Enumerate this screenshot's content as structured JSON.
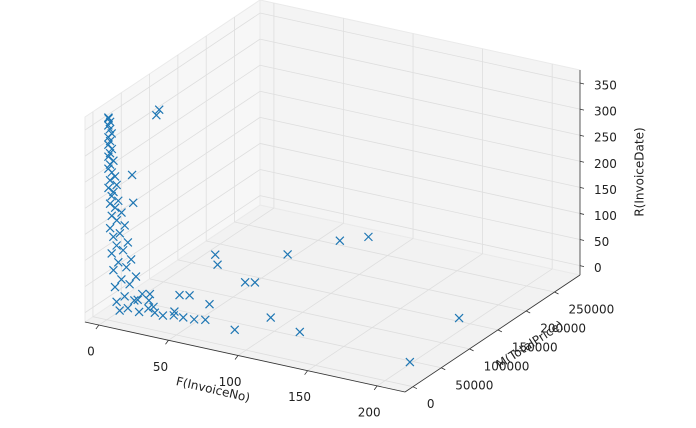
{
  "chart_data": {
    "type": "scatter3d",
    "xlabel": "F(InvoiceNo)",
    "ylabel": "M(TotalPrice)",
    "zlabel": "R(InvoiceDate)",
    "xlim": [
      -10,
      220
    ],
    "ylim": [
      -14000,
      295000
    ],
    "zlim": [
      -18,
      375
    ],
    "xticks": [
      0,
      50,
      100,
      150,
      200
    ],
    "yticks": [
      0,
      50000,
      100000,
      150000,
      200000,
      250000
    ],
    "zticks": [
      0,
      50,
      100,
      150,
      200,
      250,
      300,
      350
    ],
    "grid": true,
    "color": "#1f77b4",
    "marker": "x",
    "x": [
      1,
      1,
      2,
      1,
      2,
      3,
      1,
      2,
      1,
      3,
      2,
      1,
      4,
      2,
      1,
      3,
      5,
      2,
      6,
      1,
      4,
      3,
      7,
      2,
      5,
      9,
      3,
      6,
      11,
      2,
      8,
      4,
      13,
      6,
      10,
      3,
      15,
      7,
      12,
      4,
      18,
      9,
      14,
      5,
      22,
      11,
      17,
      6,
      26,
      13,
      30,
      20,
      8,
      35,
      42,
      48,
      55,
      25,
      12,
      16,
      1,
      1,
      10,
      10,
      206,
      197,
      83,
      71,
      53,
      122,
      95,
      85,
      53,
      58,
      14,
      23,
      51,
      27,
      11,
      33,
      61,
      38
    ],
    "y": [
      300,
      600,
      900,
      200,
      500,
      1200,
      400,
      800,
      300,
      1500,
      700,
      350,
      1800,
      900,
      300,
      1400,
      2200,
      700,
      2600,
      450,
      1900,
      1200,
      3000,
      800,
      2400,
      3800,
      1300,
      2800,
      4500,
      900,
      3300,
      1700,
      5200,
      2500,
      4200,
      1200,
      6000,
      3100,
      5000,
      1800,
      7200,
      3600,
      5800,
      2100,
      8500,
      4400,
      6800,
      2500,
      9500,
      5200,
      11000,
      7800,
      3000,
      13000,
      15000,
      17000,
      19000,
      21000,
      25000,
      35000,
      85000,
      90000,
      20000,
      22000,
      29000,
      138000,
      258000,
      237000,
      189000,
      41000,
      56000,
      17000,
      114000,
      119000,
      157000,
      139000,
      56000,
      62000,
      49000,
      65000,
      24000,
      26000
    ],
    "z": [
      370,
      368,
      362,
      355,
      348,
      340,
      332,
      325,
      318,
      310,
      302,
      295,
      288,
      280,
      272,
      265,
      258,
      250,
      242,
      235,
      228,
      220,
      212,
      205,
      198,
      190,
      182,
      174,
      166,
      158,
      150,
      142,
      134,
      126,
      118,
      110,
      102,
      94,
      86,
      78,
      70,
      62,
      54,
      46,
      38,
      30,
      24,
      18,
      12,
      8,
      5,
      3,
      2,
      1,
      4,
      2,
      1,
      6,
      9,
      3,
      313,
      320,
      251,
      196,
      0,
      0,
      2,
      3,
      1,
      0,
      1,
      0,
      2,
      1,
      1,
      0,
      1,
      0,
      2,
      1,
      0,
      1
    ]
  }
}
